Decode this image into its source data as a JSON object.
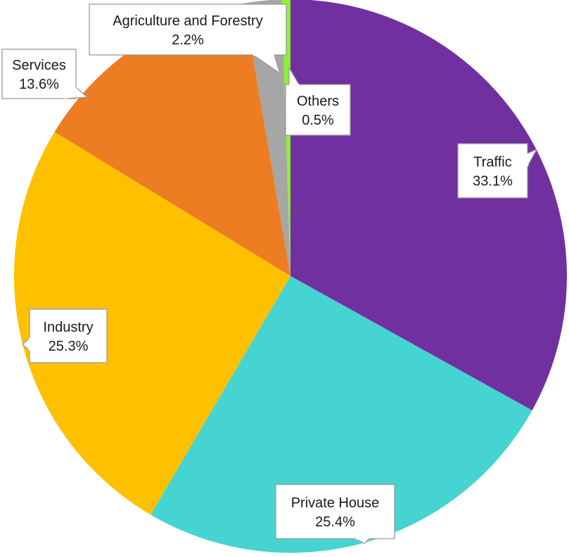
{
  "chart_data": {
    "type": "pie",
    "start_angle_deg": 0,
    "direction": "clockwise",
    "slices": [
      {
        "label": "Traffic",
        "value": 33.1,
        "display": "33.1%",
        "color": "#7030A0"
      },
      {
        "label": "Private House",
        "value": 25.4,
        "display": "25.4%",
        "color": "#45D4D1"
      },
      {
        "label": "Industry",
        "value": 25.3,
        "display": "25.3%",
        "color": "#FFC000"
      },
      {
        "label": "Services",
        "value": 13.6,
        "display": "13.6%",
        "color": "#ED7D22"
      },
      {
        "label": "Agriculture and Forestry",
        "value": 2.2,
        "display": "2.2%",
        "color": "#A6A6A6"
      },
      {
        "label": "Others",
        "value": 0.5,
        "display": "0.5%",
        "color": "#8CF02E"
      }
    ],
    "title": "",
    "legend": "none",
    "data_labels": "callouts"
  }
}
